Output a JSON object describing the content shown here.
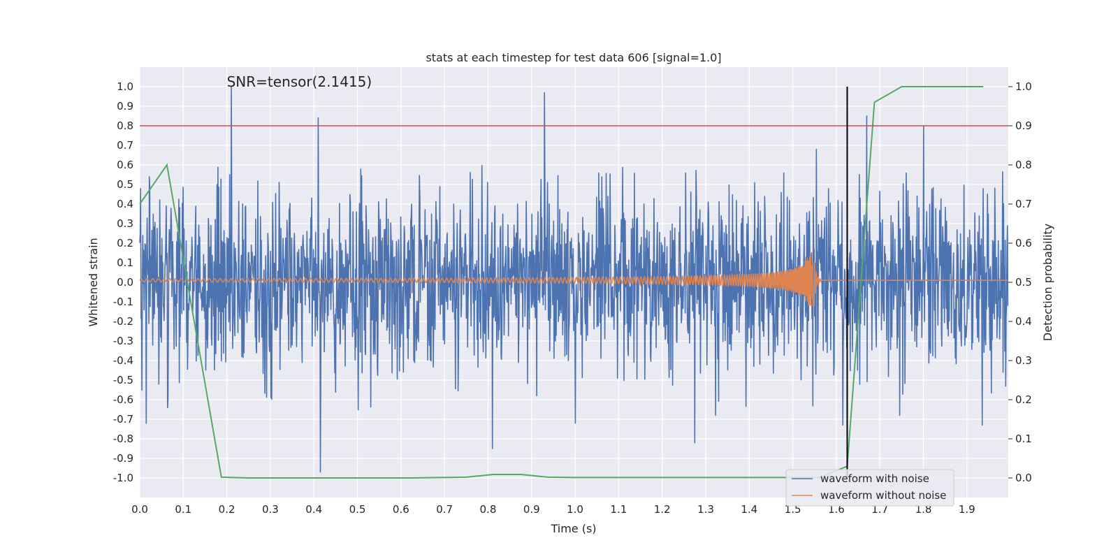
{
  "chart_data": {
    "type": "line",
    "title": "stats at each timestep for test data 606 [signal=1.0]",
    "xlabel": "Time (s)",
    "ylabel": "Whitened strain",
    "y2label": "Detection probability",
    "xlim": [
      0.0,
      1.995
    ],
    "ylim": [
      -1.1,
      1.1
    ],
    "y2lim": [
      -0.05,
      1.05
    ],
    "xticks": [
      0.0,
      0.1,
      0.2,
      0.3,
      0.4,
      0.5,
      0.6,
      0.7,
      0.8,
      0.9,
      1.0,
      1.1,
      1.2,
      1.3,
      1.4,
      1.5,
      1.6,
      1.7,
      1.8,
      1.9
    ],
    "xtick_labels": [
      "0.0",
      "0.1",
      "0.2",
      "0.3",
      "0.4",
      "0.5",
      "0.6",
      "0.7",
      "0.8",
      "0.9",
      "1.0",
      "1.1",
      "1.2",
      "1.3",
      "1.4",
      "1.5",
      "1.6",
      "1.7",
      "1.8",
      "1.9"
    ],
    "yticks": [
      1.0,
      0.9,
      0.8,
      0.7,
      0.6,
      0.5,
      0.4,
      0.3,
      0.2,
      0.1,
      0.0,
      -0.1,
      -0.2,
      -0.3,
      -0.4,
      -0.5,
      -0.6,
      -0.7,
      -0.8,
      -0.9,
      -1.0
    ],
    "ytick_labels": [
      "1.0",
      "0.9",
      "0.8",
      "0.7",
      "0.6",
      "0.5",
      "0.4",
      "0.3",
      "0.2",
      "0.1",
      "0.0",
      "-0.1",
      "-0.2",
      "-0.3",
      "-0.4",
      "-0.5",
      "-0.6",
      "-0.7",
      "-0.8",
      "-0.9",
      "-1.0"
    ],
    "y2ticks": [
      1.0,
      0.9,
      0.8,
      0.7,
      0.6,
      0.5,
      0.4,
      0.3,
      0.2,
      0.1,
      0.0
    ],
    "y2tick_labels": [
      "1.0",
      "0.9",
      "0.8",
      "0.7",
      "0.6",
      "0.5",
      "0.4",
      "0.3",
      "0.2",
      "0.1",
      "0.0"
    ],
    "annotation": "SNR=tensor(2.1415)",
    "annotation_pos": {
      "x": 0.2,
      "y": 1.0
    },
    "threshold": {
      "y2": 0.9,
      "color": "#c44e52"
    },
    "marker_line": {
      "x": 1.625,
      "y_range": [
        -1.0,
        1.0
      ],
      "color": "#000000"
    },
    "series": [
      {
        "name": "waveform with noise",
        "color": "#4c72b0",
        "description": "noisy whitened strain, approx. +/-0.4 with occasional spikes up to 1.0",
        "spikes": [
          [
            0.21,
            1.0
          ],
          [
            0.41,
            0.84
          ],
          [
            0.415,
            -0.97
          ],
          [
            0.93,
            0.97
          ],
          [
            0.81,
            -0.85
          ],
          [
            1.67,
            0.85
          ],
          [
            1.8,
            0.8
          ],
          [
            1.615,
            -0.73
          ],
          [
            1.935,
            -0.73
          ],
          [
            1.275,
            -0.82
          ],
          [
            0.015,
            -0.72
          ],
          [
            1.0,
            -0.72
          ]
        ]
      },
      {
        "name": "waveform without noise",
        "color": "#dd8452",
        "description": "chirp signal, small oscillation growing to merger near t=1.54s"
      },
      {
        "name": "detection probability",
        "axis": "y2",
        "color": "#55a868",
        "x": [
          0.0,
          0.0625,
          0.125,
          0.1875,
          0.25,
          0.3125,
          0.375,
          0.4375,
          0.5,
          0.5625,
          0.625,
          0.6875,
          0.75,
          0.8125,
          0.875,
          0.9375,
          1.0,
          1.0625,
          1.125,
          1.1875,
          1.25,
          1.3125,
          1.375,
          1.4375,
          1.5,
          1.5625,
          1.625,
          1.6875,
          1.75,
          1.8125,
          1.875,
          1.9375
        ],
        "y": [
          0.7,
          0.8,
          0.4,
          0.002,
          0.0,
          0.0,
          0.0,
          0.0,
          0.0,
          0.0,
          0.0,
          0.001,
          0.002,
          0.009,
          0.009,
          0.002,
          0.001,
          0.001,
          0.001,
          0.001,
          0.001,
          0.001,
          0.001,
          0.001,
          0.001,
          0.001,
          0.03,
          0.96,
          1.0,
          1.0,
          1.0,
          1.0
        ]
      }
    ],
    "legend": {
      "location": "lower right",
      "entries": [
        {
          "label": "waveform with noise",
          "color": "#4c72b0"
        },
        {
          "label": "waveform without noise",
          "color": "#dd8452"
        }
      ]
    }
  }
}
